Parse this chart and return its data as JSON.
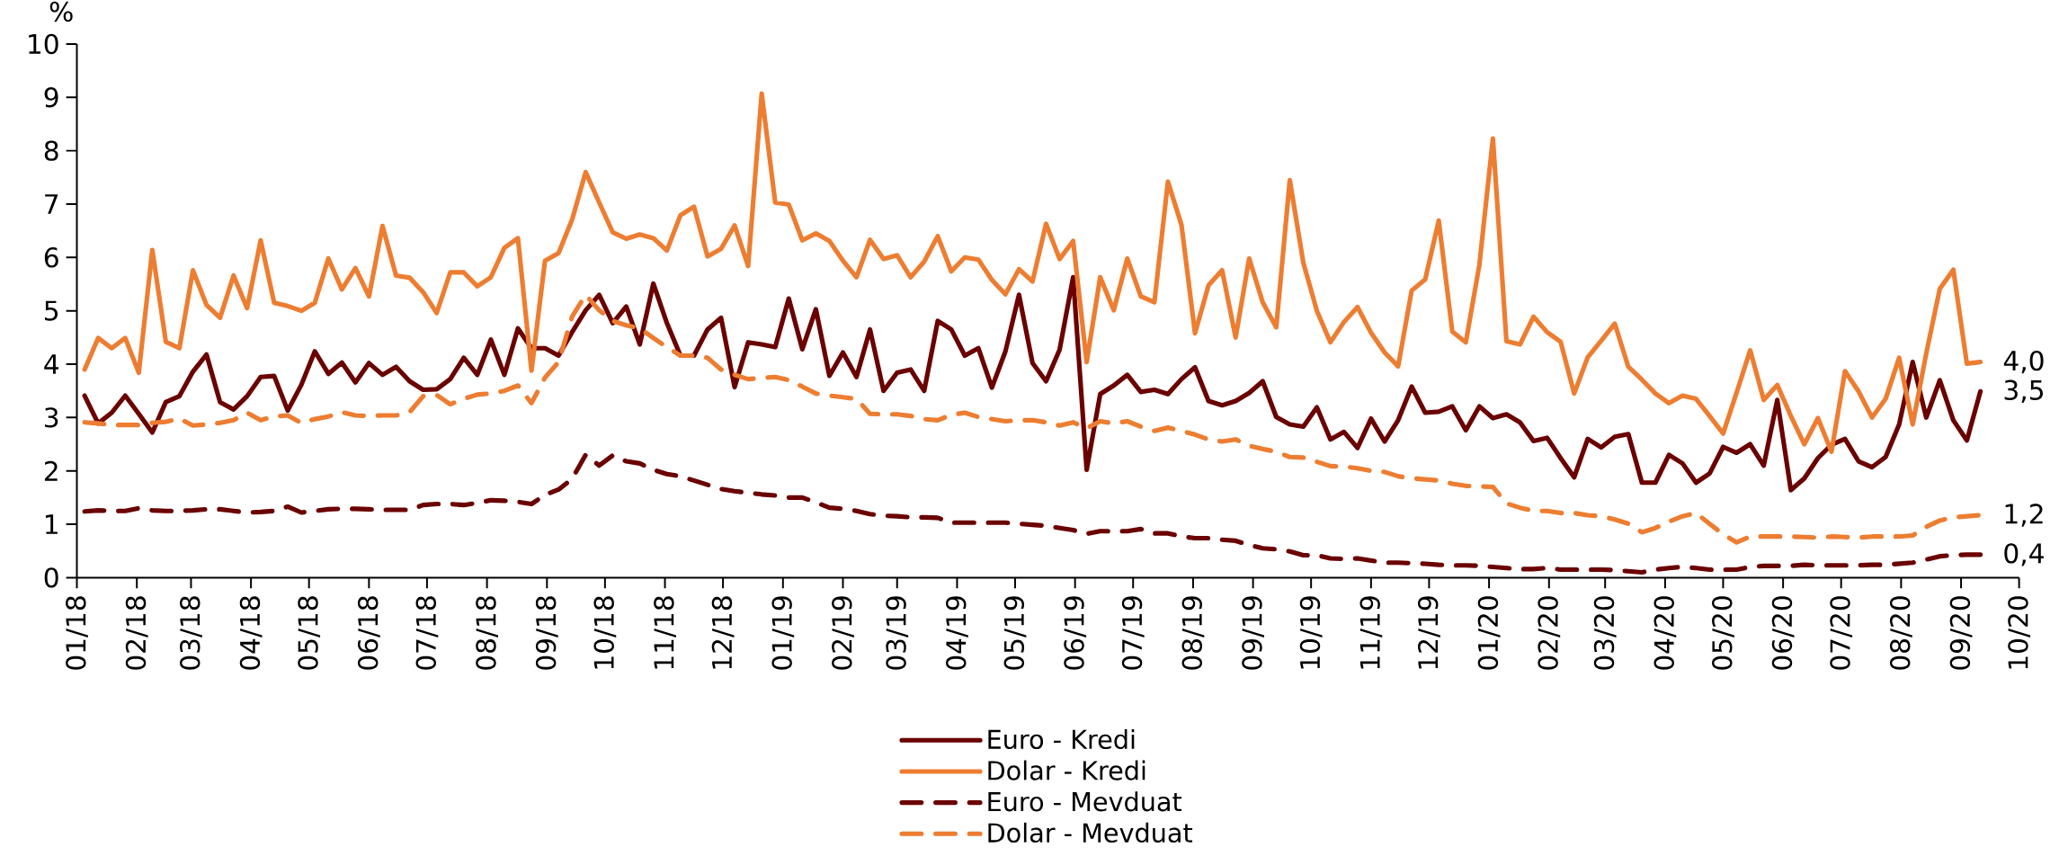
{
  "chart_data": {
    "type": "line",
    "ylabel": "%",
    "legend": "bottom",
    "grid": false,
    "marker": "none",
    "xlim": [
      "2018-01",
      "2020-10"
    ],
    "ylim": [
      0,
      10
    ],
    "yticks": [
      0,
      1,
      2,
      3,
      4,
      5,
      6,
      7,
      8,
      9,
      10
    ],
    "xticks": [
      {
        "value": "2018-01",
        "label": "01/18"
      },
      {
        "value": "2018-02",
        "label": "02/18"
      },
      {
        "value": "2018-03",
        "label": "03/18"
      },
      {
        "value": "2018-04",
        "label": "04/18"
      },
      {
        "value": "2018-05",
        "label": "05/18"
      },
      {
        "value": "2018-06",
        "label": "06/18"
      },
      {
        "value": "2018-07",
        "label": "07/18"
      },
      {
        "value": "2018-08",
        "label": "08/18"
      },
      {
        "value": "2018-09",
        "label": "09/18"
      },
      {
        "value": "2018-10",
        "label": "10/18"
      },
      {
        "value": "2018-11",
        "label": "11/18"
      },
      {
        "value": "2018-12",
        "label": "12/18"
      },
      {
        "value": "2019-01",
        "label": "01/19"
      },
      {
        "value": "2019-02",
        "label": "02/19"
      },
      {
        "value": "2019-03",
        "label": "03/19"
      },
      {
        "value": "2019-04",
        "label": "04/19"
      },
      {
        "value": "2019-05",
        "label": "05/19"
      },
      {
        "value": "2019-06",
        "label": "06/19"
      },
      {
        "value": "2019-07",
        "label": "07/19"
      },
      {
        "value": "2019-08",
        "label": "08/19"
      },
      {
        "value": "2019-09",
        "label": "09/19"
      },
      {
        "value": "2019-10",
        "label": "10/19"
      },
      {
        "value": "2019-11",
        "label": "11/19"
      },
      {
        "value": "2019-12",
        "label": "12/19"
      },
      {
        "value": "2020-01",
        "label": "01/20"
      },
      {
        "value": "2020-02",
        "label": "02/20"
      },
      {
        "value": "2020-03",
        "label": "03/20"
      },
      {
        "value": "2020-04",
        "label": "04/20"
      },
      {
        "value": "2020-05",
        "label": "05/20"
      },
      {
        "value": "2020-06",
        "label": "06/20"
      },
      {
        "value": "2020-07",
        "label": "07/20"
      },
      {
        "value": "2020-08",
        "label": "08/20"
      },
      {
        "value": "2020-09",
        "label": "09/20"
      },
      {
        "value": "2020-10",
        "label": "10/20"
      }
    ],
    "x": [
      "2018-01-05",
      "2018-01-12",
      "2018-01-19",
      "2018-01-26",
      "2018-02-02",
      "2018-02-09",
      "2018-02-16",
      "2018-02-23",
      "2018-03-02",
      "2018-03-09",
      "2018-03-16",
      "2018-03-23",
      "2018-03-30",
      "2018-04-06",
      "2018-04-13",
      "2018-04-20",
      "2018-04-27",
      "2018-05-04",
      "2018-05-11",
      "2018-05-18",
      "2018-05-25",
      "2018-06-01",
      "2018-06-08",
      "2018-06-15",
      "2018-06-22",
      "2018-06-29",
      "2018-07-06",
      "2018-07-13",
      "2018-07-20",
      "2018-07-27",
      "2018-08-03",
      "2018-08-10",
      "2018-08-17",
      "2018-08-24",
      "2018-08-31",
      "2018-09-07",
      "2018-09-14",
      "2018-09-21",
      "2018-09-28",
      "2018-10-05",
      "2018-10-12",
      "2018-10-19",
      "2018-10-26",
      "2018-11-02",
      "2018-11-09",
      "2018-11-16",
      "2018-11-23",
      "2018-11-30",
      "2018-12-07",
      "2018-12-14",
      "2018-12-21",
      "2018-12-28",
      "2019-01-04",
      "2019-01-11",
      "2019-01-18",
      "2019-01-25",
      "2019-02-01",
      "2019-02-08",
      "2019-02-15",
      "2019-02-22",
      "2019-03-01",
      "2019-03-08",
      "2019-03-15",
      "2019-03-22",
      "2019-03-29",
      "2019-04-05",
      "2019-04-12",
      "2019-04-19",
      "2019-04-26",
      "2019-05-03",
      "2019-05-10",
      "2019-05-17",
      "2019-05-24",
      "2019-05-31",
      "2019-06-07",
      "2019-06-14",
      "2019-06-21",
      "2019-06-28",
      "2019-07-05",
      "2019-07-12",
      "2019-07-19",
      "2019-07-26",
      "2019-08-02",
      "2019-08-09",
      "2019-08-16",
      "2019-08-23",
      "2019-08-30",
      "2019-09-06",
      "2019-09-13",
      "2019-09-20",
      "2019-09-27",
      "2019-10-04",
      "2019-10-11",
      "2019-10-18",
      "2019-10-25",
      "2019-11-01",
      "2019-11-08",
      "2019-11-15",
      "2019-11-22",
      "2019-11-29",
      "2019-12-06",
      "2019-12-13",
      "2019-12-20",
      "2019-12-27",
      "2020-01-03",
      "2020-01-10",
      "2020-01-17",
      "2020-01-24",
      "2020-01-31",
      "2020-02-07",
      "2020-02-14",
      "2020-02-21",
      "2020-02-28",
      "2020-03-06",
      "2020-03-13",
      "2020-03-20",
      "2020-03-27",
      "2020-04-03",
      "2020-04-10",
      "2020-04-17",
      "2020-04-24",
      "2020-05-01",
      "2020-05-08",
      "2020-05-15",
      "2020-05-22",
      "2020-05-29",
      "2020-06-05",
      "2020-06-12",
      "2020-06-19",
      "2020-06-26",
      "2020-07-03",
      "2020-07-10",
      "2020-07-17",
      "2020-07-24",
      "2020-07-31",
      "2020-08-07",
      "2020-08-14",
      "2020-08-21",
      "2020-08-28",
      "2020-09-04",
      "2020-09-11"
    ],
    "series": [
      {
        "name": "Euro - Kredi",
        "color": "#6b0000",
        "line_style": "solid",
        "values": [
          3.41,
          2.89,
          3.09,
          3.41,
          3.07,
          2.72,
          3.29,
          3.4,
          3.86,
          4.18,
          3.29,
          3.15,
          3.4,
          3.76,
          3.78,
          3.13,
          3.61,
          4.24,
          3.82,
          4.03,
          3.66,
          4.02,
          3.8,
          3.95,
          3.68,
          3.52,
          3.53,
          3.72,
          4.12,
          3.8,
          4.46,
          3.8,
          4.67,
          4.3,
          4.3,
          4.16,
          4.6,
          5.01,
          5.3,
          4.77,
          5.08,
          4.37,
          5.51,
          4.77,
          4.16,
          4.16,
          4.65,
          4.87,
          3.57,
          4.41,
          4.37,
          4.32,
          5.23,
          4.28,
          5.03,
          3.78,
          4.22,
          3.76,
          4.65,
          3.5,
          3.84,
          3.9,
          3.5,
          4.81,
          4.65,
          4.16,
          4.3,
          3.56,
          4.24,
          5.3,
          4.02,
          3.68,
          4.27,
          5.63,
          2.02,
          3.44,
          3.6,
          3.8,
          3.48,
          3.52,
          3.44,
          3.72,
          3.94,
          3.31,
          3.23,
          3.31,
          3.46,
          3.68,
          3.01,
          2.87,
          2.83,
          3.19,
          2.59,
          2.73,
          2.43,
          2.98,
          2.55,
          2.95,
          3.58,
          3.09,
          3.11,
          3.21,
          2.76,
          3.21,
          2.99,
          3.06,
          2.91,
          2.56,
          2.62,
          2.24,
          1.88,
          2.6,
          2.44,
          2.64,
          2.69,
          1.78,
          1.78,
          2.3,
          2.14,
          1.78,
          1.95,
          2.45,
          2.34,
          2.5,
          2.1,
          3.33,
          1.64,
          1.86,
          2.24,
          2.49,
          2.6,
          2.18,
          2.07,
          2.26,
          2.87,
          4.04,
          3.0,
          3.7,
          2.95,
          2.57,
          3.49
        ]
      },
      {
        "name": "Dolar - Kredi",
        "color": "#ed7d31",
        "line_style": "solid",
        "values": [
          3.9,
          4.49,
          4.3,
          4.49,
          3.84,
          6.14,
          4.42,
          4.3,
          5.76,
          5.11,
          4.87,
          5.66,
          5.05,
          6.32,
          5.15,
          5.09,
          5.0,
          5.15,
          5.98,
          5.4,
          5.8,
          5.27,
          6.59,
          5.66,
          5.62,
          5.35,
          4.96,
          5.72,
          5.72,
          5.46,
          5.63,
          6.18,
          6.36,
          3.88,
          5.94,
          6.08,
          6.71,
          7.6,
          7.03,
          6.47,
          6.35,
          6.43,
          6.36,
          6.13,
          6.79,
          6.95,
          6.02,
          6.16,
          6.6,
          5.84,
          9.07,
          7.03,
          6.99,
          6.32,
          6.45,
          6.31,
          5.94,
          5.63,
          6.33,
          5.97,
          6.04,
          5.63,
          5.92,
          6.4,
          5.74,
          6.0,
          5.96,
          5.58,
          5.31,
          5.78,
          5.55,
          6.63,
          5.97,
          6.31,
          4.04,
          5.63,
          5.01,
          5.98,
          5.27,
          5.16,
          7.42,
          6.61,
          4.58,
          5.48,
          5.76,
          4.5,
          5.98,
          5.16,
          4.69,
          7.45,
          5.9,
          5.0,
          4.41,
          4.79,
          5.07,
          4.59,
          4.22,
          3.96,
          5.38,
          5.59,
          6.69,
          4.61,
          4.41,
          5.86,
          8.23,
          4.43,
          4.37,
          4.89,
          4.6,
          4.42,
          3.45,
          4.13,
          4.44,
          4.76,
          3.95,
          3.71,
          3.45,
          3.27,
          3.41,
          3.35,
          3.03,
          2.7,
          3.47,
          4.26,
          3.33,
          3.61,
          3.03,
          2.5,
          2.99,
          2.36,
          3.87,
          3.49,
          3.0,
          3.35,
          4.12,
          2.87,
          4.2,
          5.41,
          5.77,
          4.01,
          4.04
        ]
      },
      {
        "name": "Euro - Mevduat",
        "color": "#6b0000",
        "line_style": "dashed",
        "values": [
          1.24,
          1.26,
          1.25,
          1.25,
          1.3,
          1.26,
          1.25,
          1.25,
          1.26,
          1.28,
          1.28,
          1.25,
          1.22,
          1.23,
          1.25,
          1.33,
          1.22,
          1.25,
          1.28,
          1.29,
          1.29,
          1.28,
          1.27,
          1.27,
          1.27,
          1.36,
          1.38,
          1.38,
          1.36,
          1.4,
          1.45,
          1.44,
          1.42,
          1.38,
          1.55,
          1.65,
          1.85,
          2.3,
          2.1,
          2.29,
          2.18,
          2.14,
          2.02,
          1.94,
          1.9,
          1.82,
          1.74,
          1.66,
          1.62,
          1.59,
          1.56,
          1.54,
          1.5,
          1.5,
          1.41,
          1.31,
          1.29,
          1.25,
          1.19,
          1.16,
          1.15,
          1.13,
          1.13,
          1.12,
          1.03,
          1.03,
          1.03,
          1.03,
          1.03,
          1.01,
          0.99,
          0.97,
          0.93,
          0.89,
          0.82,
          0.87,
          0.87,
          0.87,
          0.91,
          0.83,
          0.83,
          0.77,
          0.74,
          0.74,
          0.71,
          0.69,
          0.61,
          0.55,
          0.53,
          0.49,
          0.42,
          0.42,
          0.36,
          0.35,
          0.36,
          0.32,
          0.28,
          0.28,
          0.27,
          0.26,
          0.24,
          0.23,
          0.23,
          0.22,
          0.2,
          0.18,
          0.16,
          0.16,
          0.18,
          0.15,
          0.15,
          0.15,
          0.15,
          0.14,
          0.12,
          0.1,
          0.15,
          0.18,
          0.2,
          0.18,
          0.15,
          0.15,
          0.15,
          0.2,
          0.22,
          0.22,
          0.22,
          0.24,
          0.23,
          0.23,
          0.23,
          0.23,
          0.24,
          0.24,
          0.26,
          0.28,
          0.34,
          0.4,
          0.42,
          0.43,
          0.43
        ]
      },
      {
        "name": "Dolar - Mevduat",
        "color": "#ed7d31",
        "line_style": "dashed",
        "values": [
          2.91,
          2.89,
          2.86,
          2.86,
          2.86,
          2.9,
          2.92,
          2.98,
          2.85,
          2.87,
          2.9,
          2.95,
          3.09,
          2.95,
          3.02,
          3.04,
          2.9,
          2.97,
          3.02,
          3.1,
          3.04,
          3.03,
          3.04,
          3.04,
          3.1,
          3.4,
          3.42,
          3.25,
          3.35,
          3.43,
          3.45,
          3.5,
          3.6,
          3.27,
          3.75,
          4.04,
          4.89,
          5.3,
          5.01,
          4.81,
          4.73,
          4.67,
          4.49,
          4.32,
          4.16,
          4.16,
          4.12,
          3.9,
          3.8,
          3.72,
          3.74,
          3.76,
          3.7,
          3.58,
          3.45,
          3.41,
          3.38,
          3.35,
          3.07,
          3.06,
          3.06,
          3.03,
          2.97,
          2.95,
          3.05,
          3.09,
          3.01,
          2.97,
          2.93,
          2.95,
          2.95,
          2.91,
          2.85,
          2.91,
          2.8,
          2.93,
          2.89,
          2.93,
          2.83,
          2.75,
          2.81,
          2.75,
          2.68,
          2.59,
          2.55,
          2.59,
          2.47,
          2.41,
          2.36,
          2.26,
          2.25,
          2.17,
          2.09,
          2.08,
          2.05,
          2.0,
          1.98,
          1.9,
          1.86,
          1.84,
          1.82,
          1.76,
          1.72,
          1.71,
          1.7,
          1.39,
          1.31,
          1.25,
          1.25,
          1.21,
          1.21,
          1.17,
          1.15,
          1.09,
          1.01,
          0.85,
          0.93,
          1.05,
          1.15,
          1.21,
          1.01,
          0.81,
          0.66,
          0.77,
          0.77,
          0.77,
          0.77,
          0.76,
          0.75,
          0.77,
          0.76,
          0.75,
          0.77,
          0.77,
          0.77,
          0.79,
          0.95,
          1.07,
          1.13,
          1.15,
          1.17
        ]
      }
    ],
    "annotations": [
      {
        "text": "4,0",
        "x": "2020-09-11",
        "y": 4.04
      },
      {
        "text": "3,5",
        "x": "2020-09-11",
        "y": 3.49
      },
      {
        "text": "1,2",
        "x": "2020-09-11",
        "y": 1.17
      },
      {
        "text": "0,4",
        "x": "2020-09-11",
        "y": 0.43
      }
    ]
  }
}
